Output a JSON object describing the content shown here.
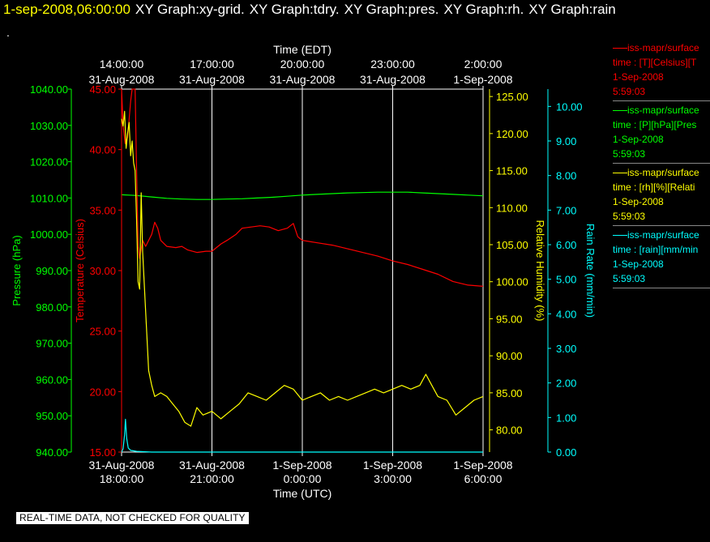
{
  "header": {
    "timestamp": "1-sep-2008,06:00:00",
    "graphs": [
      "XY Graph:xy-grid.",
      "XY Graph:tdry.",
      "XY Graph:pres.",
      "XY Graph:rh.",
      "XY Graph:rain"
    ]
  },
  "dot": ".",
  "banner": "REAL-TIME DATA, NOT CHECKED FOR QUALITY",
  "colors": {
    "background": "#000000",
    "pressure": "#00ff00",
    "temperature": "#ff0000",
    "humidity": "#ffff00",
    "rain": "#00ffff",
    "grid": "#ffffff"
  },
  "legend": [
    {
      "color": "#ff0000",
      "lines": [
        "iss-mapr/surface",
        "time : [T][Celsius][T",
        "1-Sep-2008",
        "5:59:03"
      ]
    },
    {
      "color": "#00ff00",
      "lines": [
        "iss-mapr/surface",
        "time : [P][hPa][Pres",
        "1-Sep-2008",
        "5:59:03"
      ]
    },
    {
      "color": "#ffff00",
      "lines": [
        "iss-mapr/surface",
        "time : [rh][%][Relati",
        "1-Sep-2008",
        "5:59:03"
      ]
    },
    {
      "color": "#00ffff",
      "lines": [
        "iss-mapr/surface",
        "time : [rain][mm/min",
        "1-Sep-2008",
        "5:59:03"
      ]
    }
  ],
  "chart_data": {
    "type": "line",
    "top_axis": {
      "label": "Time (EDT)",
      "ticks": [
        {
          "hours": 0,
          "time": "14:00:00",
          "date": "31-Aug-2008"
        },
        {
          "hours": 3,
          "time": "17:00:00",
          "date": "31-Aug-2008"
        },
        {
          "hours": 6,
          "time": "20:00:00",
          "date": "31-Aug-2008"
        },
        {
          "hours": 9,
          "time": "23:00:00",
          "date": "31-Aug-2008"
        },
        {
          "hours": 12,
          "time": "2:00:00",
          "date": "1-Sep-2008"
        }
      ]
    },
    "bottom_axis": {
      "label": "Time (UTC)",
      "ticks": [
        {
          "hours": 0,
          "date": "31-Aug-2008",
          "time": "18:00:00"
        },
        {
          "hours": 3,
          "date": "31-Aug-2008",
          "time": "21:00:00"
        },
        {
          "hours": 6,
          "date": "1-Sep-2008",
          "time": "0:00:00"
        },
        {
          "hours": 9,
          "date": "1-Sep-2008",
          "time": "3:00:00"
        },
        {
          "hours": 12,
          "date": "1-Sep-2008",
          "time": "6:00:00"
        }
      ]
    },
    "x_range_hours": [
      0,
      12
    ],
    "grid": true,
    "series": [
      {
        "name": "Pressure (hPa)",
        "axis": "pressure",
        "ylim": [
          940,
          1040
        ],
        "ticks": [
          "1040.00",
          "1030.00",
          "1020.00",
          "1010.00",
          "1000.00",
          "990.00",
          "980.00",
          "970.00",
          "960.00",
          "950.00",
          "940.00"
        ],
        "points": [
          [
            0,
            1010.9
          ],
          [
            0.5,
            1010.7
          ],
          [
            1,
            1010.3
          ],
          [
            1.5,
            1009.9
          ],
          [
            2,
            1009.7
          ],
          [
            2.5,
            1009.6
          ],
          [
            3,
            1009.6
          ],
          [
            3.5,
            1009.7
          ],
          [
            4,
            1009.8
          ],
          [
            4.5,
            1010.0
          ],
          [
            5,
            1010.2
          ],
          [
            5.5,
            1010.5
          ],
          [
            6,
            1010.8
          ],
          [
            6.5,
            1011.0
          ],
          [
            7,
            1011.2
          ],
          [
            7.5,
            1011.4
          ],
          [
            8,
            1011.5
          ],
          [
            8.5,
            1011.6
          ],
          [
            9,
            1011.6
          ],
          [
            9.5,
            1011.6
          ],
          [
            10,
            1011.4
          ],
          [
            10.5,
            1011.2
          ],
          [
            11,
            1011.0
          ],
          [
            11.5,
            1010.8
          ],
          [
            12,
            1010.6
          ]
        ]
      },
      {
        "name": "Temperature (Celsius)",
        "axis": "temperature",
        "ylim": [
          15,
          45
        ],
        "ticks": [
          "45.00",
          "40.00",
          "35.00",
          "30.00",
          "25.00",
          "20.00",
          "15.00"
        ],
        "points": [
          [
            0,
            45
          ],
          [
            0.05,
            42
          ],
          [
            0.12,
            40.5
          ],
          [
            0.2,
            41
          ],
          [
            0.3,
            44
          ],
          [
            0.35,
            45
          ],
          [
            0.45,
            45
          ],
          [
            0.5,
            38
          ],
          [
            0.55,
            32
          ],
          [
            0.6,
            31
          ],
          [
            0.7,
            32.5
          ],
          [
            0.8,
            32
          ],
          [
            1,
            33
          ],
          [
            1.1,
            34
          ],
          [
            1.2,
            33.5
          ],
          [
            1.3,
            32.5
          ],
          [
            1.5,
            32
          ],
          [
            1.8,
            31.9
          ],
          [
            2,
            32
          ],
          [
            2.2,
            31.7
          ],
          [
            2.5,
            31.5
          ],
          [
            2.8,
            31.6
          ],
          [
            3,
            31.6
          ],
          [
            3.3,
            32.2
          ],
          [
            3.5,
            32.5
          ],
          [
            3.8,
            33
          ],
          [
            4,
            33.5
          ],
          [
            4.3,
            33.6
          ],
          [
            4.6,
            33.7
          ],
          [
            4.9,
            33.6
          ],
          [
            5.2,
            33.3
          ],
          [
            5.5,
            33.5
          ],
          [
            5.7,
            33.9
          ],
          [
            5.85,
            32.8
          ],
          [
            6,
            32.5
          ],
          [
            6.5,
            32.3
          ],
          [
            7,
            32.1
          ],
          [
            7.5,
            31.8
          ],
          [
            8,
            31.5
          ],
          [
            8.5,
            31.2
          ],
          [
            9,
            30.8
          ],
          [
            9.5,
            30.5
          ],
          [
            10,
            30.1
          ],
          [
            10.5,
            29.7
          ],
          [
            11,
            29.1
          ],
          [
            11.5,
            28.8
          ],
          [
            12,
            28.7
          ]
        ]
      },
      {
        "name": "Relative Humidity (%)",
        "axis": "humidity",
        "ylim": [
          77,
          126
        ],
        "ticks": [
          "125.00",
          "120.00",
          "115.00",
          "110.00",
          "105.00",
          "100.00",
          "95.00",
          "90.00",
          "85.00",
          "80.00"
        ],
        "points": [
          [
            0,
            122
          ],
          [
            0.05,
            121
          ],
          [
            0.1,
            123
          ],
          [
            0.15,
            118
          ],
          [
            0.2,
            120
          ],
          [
            0.25,
            121.5
          ],
          [
            0.3,
            117
          ],
          [
            0.35,
            119
          ],
          [
            0.4,
            116
          ],
          [
            0.45,
            115
          ],
          [
            0.5,
            108
          ],
          [
            0.55,
            100
          ],
          [
            0.6,
            99
          ],
          [
            0.65,
            112
          ],
          [
            0.7,
            104
          ],
          [
            0.8,
            96
          ],
          [
            0.9,
            88
          ],
          [
            1,
            86
          ],
          [
            1.1,
            84.5
          ],
          [
            1.3,
            85
          ],
          [
            1.5,
            84.5
          ],
          [
            1.7,
            83.5
          ],
          [
            1.9,
            82.5
          ],
          [
            2.1,
            81
          ],
          [
            2.3,
            80.5
          ],
          [
            2.5,
            83
          ],
          [
            2.7,
            82
          ],
          [
            3,
            82.5
          ],
          [
            3.3,
            81.5
          ],
          [
            3.6,
            82.5
          ],
          [
            3.9,
            83.5
          ],
          [
            4.2,
            85
          ],
          [
            4.5,
            84.5
          ],
          [
            4.8,
            84
          ],
          [
            5.1,
            85
          ],
          [
            5.4,
            86
          ],
          [
            5.7,
            85.5
          ],
          [
            6,
            84
          ],
          [
            6.3,
            84.5
          ],
          [
            6.6,
            85
          ],
          [
            6.9,
            84
          ],
          [
            7.2,
            84.5
          ],
          [
            7.5,
            84
          ],
          [
            7.8,
            84.5
          ],
          [
            8.1,
            85
          ],
          [
            8.4,
            85.5
          ],
          [
            8.7,
            85
          ],
          [
            9,
            85.5
          ],
          [
            9.3,
            86
          ],
          [
            9.6,
            85.5
          ],
          [
            9.9,
            86
          ],
          [
            10.1,
            87.5
          ],
          [
            10.3,
            86
          ],
          [
            10.5,
            84.5
          ],
          [
            10.8,
            84
          ],
          [
            11.1,
            82
          ],
          [
            11.4,
            83
          ],
          [
            11.7,
            84
          ],
          [
            12,
            84.5
          ]
        ]
      },
      {
        "name": "Rain Rate (mm/min)",
        "axis": "rain",
        "ylim": [
          0,
          10.5
        ],
        "ticks": [
          "10.00",
          "9.00",
          "8.00",
          "7.00",
          "6.00",
          "5.00",
          "4.00",
          "3.00",
          "2.00",
          "1.00",
          "0.00"
        ],
        "points": [
          [
            0,
            0
          ],
          [
            0.05,
            0.1
          ],
          [
            0.1,
            0.5
          ],
          [
            0.13,
            0.95
          ],
          [
            0.17,
            0.4
          ],
          [
            0.22,
            0.12
          ],
          [
            0.3,
            0.05
          ],
          [
            0.5,
            0.02
          ],
          [
            1,
            0
          ],
          [
            12,
            0
          ]
        ]
      }
    ]
  }
}
